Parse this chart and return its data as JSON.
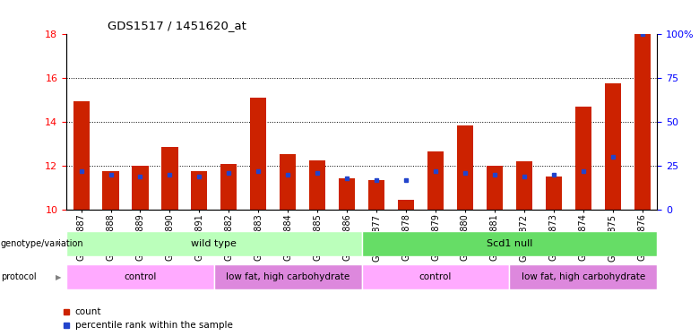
{
  "title": "GDS1517 / 1451620_at",
  "samples": [
    "GSM88887",
    "GSM88888",
    "GSM88889",
    "GSM88890",
    "GSM88891",
    "GSM88882",
    "GSM88883",
    "GSM88884",
    "GSM88885",
    "GSM88886",
    "GSM88877",
    "GSM88878",
    "GSM88879",
    "GSM88880",
    "GSM88881",
    "GSM88872",
    "GSM88873",
    "GSM88874",
    "GSM88875",
    "GSM88876"
  ],
  "count_values": [
    14.95,
    11.75,
    12.0,
    12.85,
    11.75,
    12.1,
    15.1,
    12.55,
    12.25,
    11.45,
    11.35,
    10.45,
    12.65,
    13.85,
    12.0,
    12.2,
    11.5,
    14.7,
    15.75,
    18.0
  ],
  "percentile_values": [
    22,
    20,
    19,
    20,
    19,
    21,
    22,
    20,
    21,
    18,
    17,
    17,
    22,
    21,
    20,
    19,
    20,
    22,
    30,
    100
  ],
  "ylim_left": [
    10,
    18
  ],
  "ylim_right": [
    0,
    100
  ],
  "yticks_left": [
    10,
    12,
    14,
    16,
    18
  ],
  "yticks_right": [
    0,
    25,
    50,
    75,
    100
  ],
  "ytick_labels_right": [
    "0",
    "25",
    "50",
    "75",
    "100%"
  ],
  "bar_color": "#cc2200",
  "percentile_color": "#2244cc",
  "genotype_variation": [
    {
      "label": "wild type",
      "start": 0,
      "end": 10,
      "color": "#bbffbb"
    },
    {
      "label": "Scd1 null",
      "start": 10,
      "end": 20,
      "color": "#66dd66"
    }
  ],
  "protocol": [
    {
      "label": "control",
      "start": 0,
      "end": 5,
      "color": "#ffaaff"
    },
    {
      "label": "low fat, high carbohydrate",
      "start": 5,
      "end": 10,
      "color": "#dd88dd"
    },
    {
      "label": "control",
      "start": 10,
      "end": 15,
      "color": "#ffaaff"
    },
    {
      "label": "low fat, high carbohydrate",
      "start": 15,
      "end": 20,
      "color": "#dd88dd"
    }
  ],
  "bar_width": 0.55,
  "fig_width": 7.8,
  "fig_height": 3.75
}
